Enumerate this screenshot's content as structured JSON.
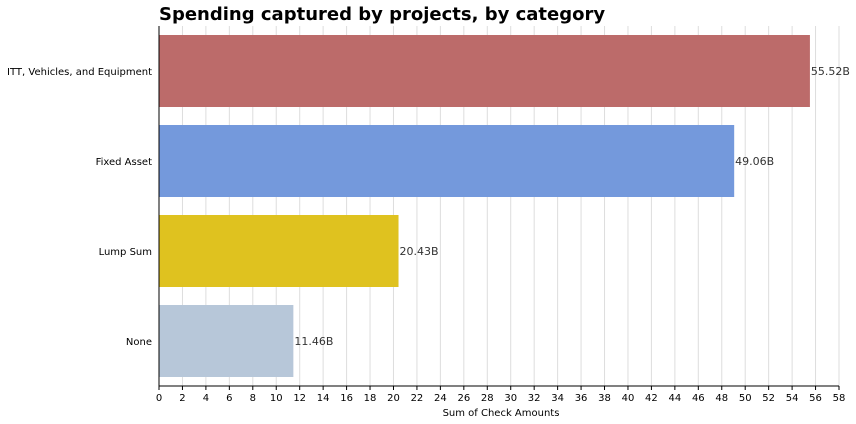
{
  "chart_data": {
    "type": "bar",
    "orientation": "horizontal",
    "title": "Spending captured by projects, by category",
    "xlabel": "Sum of Check Amounts",
    "ylabel": "",
    "categories": [
      "ITT, Vehicles, and Equipment",
      "Fixed Asset",
      "Lump Sum",
      "None"
    ],
    "values": [
      55.52,
      49.06,
      20.43,
      11.46
    ],
    "data_labels": [
      "55.52B",
      "49.06B",
      "20.43B",
      "11.46B"
    ],
    "colors": [
      "#bc6b6a",
      "#7499dc",
      "#dfc21f",
      "#b7c7d9"
    ],
    "xlim": [
      0,
      58
    ],
    "xticks": [
      0,
      2,
      4,
      6,
      8,
      10,
      12,
      14,
      16,
      18,
      20,
      22,
      24,
      26,
      28,
      30,
      32,
      34,
      36,
      38,
      40,
      42,
      44,
      46,
      48,
      50,
      52,
      54,
      56,
      58
    ],
    "grid": "vertical",
    "legend": "none"
  }
}
